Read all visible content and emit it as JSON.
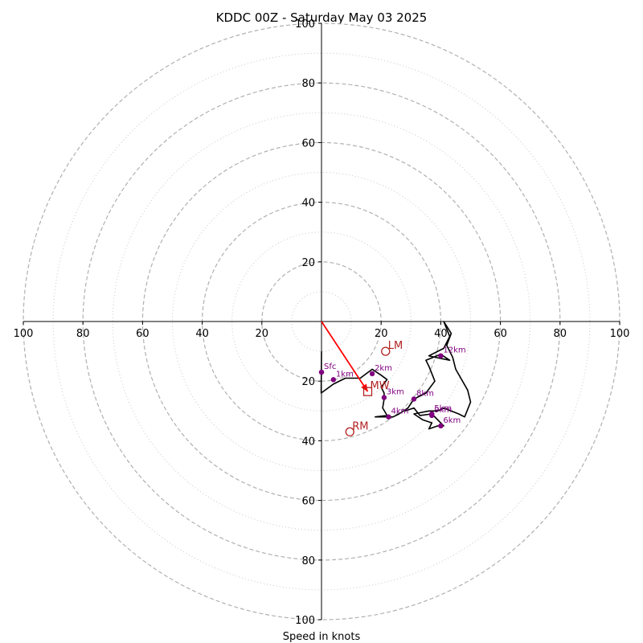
{
  "chart_data": {
    "type": "hodograph",
    "title": "KDDC 00Z - Saturday May 03 2025",
    "xlabel": "Speed in knots",
    "units": "knots",
    "range": [
      -100,
      100
    ],
    "rings_major": [
      20,
      40,
      60,
      80,
      100
    ],
    "rings_minor": [
      10,
      30,
      50,
      70,
      90
    ],
    "x_tick_labels": [
      "100",
      "80",
      "60",
      "40",
      "20",
      "20",
      "40",
      "60",
      "80",
      "100"
    ],
    "x_tick_values": [
      -100,
      -80,
      -60,
      -40,
      -20,
      20,
      40,
      60,
      80,
      100
    ],
    "y_tick_labels": [
      "100",
      "80",
      "60",
      "40",
      "20",
      "20",
      "40",
      "60",
      "80",
      "100"
    ],
    "y_tick_values": [
      100,
      80,
      60,
      40,
      20,
      -20,
      -40,
      -60,
      -80,
      -100
    ],
    "trace": [
      [
        0.0,
        -10.0
      ],
      [
        -0.1,
        -24.0
      ],
      [
        4.0,
        -21.0
      ],
      [
        8.0,
        -19.0
      ],
      [
        13.0,
        -19.0
      ],
      [
        17.0,
        -16.0
      ],
      [
        20.0,
        -18.0
      ],
      [
        22.0,
        -19.5
      ],
      [
        20.0,
        -22.0
      ],
      [
        21.0,
        -24.0
      ],
      [
        21.0,
        -26.0
      ],
      [
        20.5,
        -29.0
      ],
      [
        22.0,
        -31.5
      ],
      [
        18.0,
        -32.0
      ],
      [
        24.0,
        -32.0
      ],
      [
        26.0,
        -31.0
      ],
      [
        29.0,
        -29.0
      ],
      [
        31.0,
        -26.0
      ],
      [
        35.0,
        -24.0
      ],
      [
        38.0,
        -20.0
      ],
      [
        36.0,
        -15.0
      ],
      [
        35.0,
        -13.0
      ],
      [
        40.0,
        -11.0
      ],
      [
        43.0,
        -13.0
      ],
      [
        38.0,
        -12.0
      ],
      [
        36.0,
        -11.5
      ],
      [
        41.0,
        -9.0
      ],
      [
        43.0,
        -5.0
      ],
      [
        41.0,
        0.0
      ],
      [
        43.5,
        -4.0
      ],
      [
        42.0,
        -8.0
      ],
      [
        44.0,
        -12.0
      ],
      [
        45.0,
        -16.0
      ],
      [
        49.0,
        -23.0
      ],
      [
        50.0,
        -27.0
      ],
      [
        48.0,
        -32.0
      ],
      [
        46.0,
        -31.0
      ],
      [
        41.0,
        -29.0
      ],
      [
        39.0,
        -30.0
      ],
      [
        36.0,
        -30.0
      ],
      [
        31.0,
        -31.0
      ],
      [
        34.0,
        -33.0
      ],
      [
        37.0,
        -34.0
      ],
      [
        36.0,
        -36.0
      ],
      [
        39.0,
        -35.0
      ],
      [
        41.0,
        -35.0
      ],
      [
        37.0,
        -31.0
      ],
      [
        33.0,
        -31.5
      ],
      [
        31.0,
        -29.0
      ],
      [
        28.0,
        -30.0
      ]
    ],
    "height_points": [
      {
        "label": "Sfc",
        "u": 0.0,
        "v": -17.0
      },
      {
        "label": "1km",
        "u": 4.0,
        "v": -19.5
      },
      {
        "label": "2km",
        "u": 17.0,
        "v": -17.5
      },
      {
        "label": "3km",
        "u": 21.0,
        "v": -25.5
      },
      {
        "label": "4km",
        "u": 22.5,
        "v": -32.0
      },
      {
        "label": "5km",
        "u": 37.0,
        "v": -31.0
      },
      {
        "label": "6km",
        "u": 40.0,
        "v": -35.0
      },
      {
        "label": "8km",
        "u": 31.0,
        "v": -26.0
      },
      {
        "label": "9km",
        "u": 37.0,
        "v": -31.5
      },
      {
        "label": "12km",
        "u": 40.0,
        "v": -11.5
      }
    ],
    "storm_motions": [
      {
        "label": "LM",
        "u": 21.5,
        "v": -10.0,
        "marker": "circle"
      },
      {
        "label": "MW",
        "u": 15.5,
        "v": -23.5,
        "marker": "square"
      },
      {
        "label": "RM",
        "u": 9.5,
        "v": -37.0,
        "marker": "circle"
      }
    ],
    "arrow": {
      "from": [
        0,
        0
      ],
      "to": [
        15.5,
        -23.5
      ]
    },
    "colors": {
      "trace": "#000000",
      "height_points": "#800080",
      "storm_motion": "#b22222",
      "arrow": "#ff0000",
      "major_rings": "#b0b0b0",
      "minor_rings": "#c8c8c8"
    }
  }
}
